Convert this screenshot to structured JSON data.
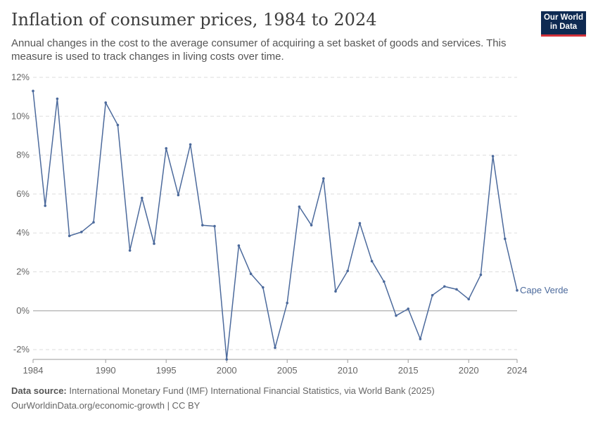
{
  "header": {
    "title": "Inflation of consumer prices, 1984 to 2024",
    "subtitle": "Annual changes in the cost to the average consumer of acquiring a set basket of goods and services. This measure is used to track changes in living costs over time."
  },
  "logo": {
    "line1": "Our World",
    "line2": "in Data",
    "bg_color": "#0e2a52",
    "accent_color": "#d3313a"
  },
  "footer": {
    "source_label": "Data source:",
    "source_text": "International Monetary Fund (IMF) International Financial Statistics, via World Bank (2025)",
    "credit": "OurWorldinData.org/economic-growth | CC BY"
  },
  "chart_data": {
    "type": "line",
    "title": "Inflation of consumer prices, 1984 to 2024",
    "xlabel": "",
    "ylabel": "",
    "xlim": [
      1984,
      2024
    ],
    "ylim": [
      -2.5,
      12
    ],
    "x_ticks": [
      1984,
      1990,
      1995,
      2000,
      2005,
      2010,
      2015,
      2020,
      2024
    ],
    "y_ticks": [
      -2,
      0,
      2,
      4,
      6,
      8,
      10,
      12
    ],
    "y_tick_suffix": "%",
    "grid": "horizontal dashed",
    "series": [
      {
        "name": "Cape Verde",
        "color": "#4c6a9c",
        "x": [
          1984,
          1985,
          1986,
          1987,
          1988,
          1989,
          1990,
          1991,
          1992,
          1993,
          1994,
          1995,
          1996,
          1997,
          1998,
          1999,
          2000,
          2001,
          2002,
          2003,
          2004,
          2005,
          2006,
          2007,
          2008,
          2009,
          2010,
          2011,
          2012,
          2013,
          2014,
          2015,
          2016,
          2017,
          2018,
          2019,
          2020,
          2021,
          2022,
          2023,
          2024
        ],
        "y": [
          11.3,
          5.4,
          10.9,
          3.85,
          4.05,
          4.55,
          10.7,
          9.55,
          3.1,
          5.8,
          3.45,
          8.35,
          5.95,
          8.55,
          4.4,
          4.35,
          -2.5,
          3.35,
          1.9,
          1.2,
          -1.9,
          0.4,
          5.35,
          4.4,
          6.8,
          1.0,
          2.05,
          4.5,
          2.55,
          1.5,
          -0.25,
          0.1,
          -1.45,
          0.8,
          1.25,
          1.1,
          0.6,
          1.85,
          7.95,
          3.7,
          1.05
        ]
      }
    ]
  }
}
